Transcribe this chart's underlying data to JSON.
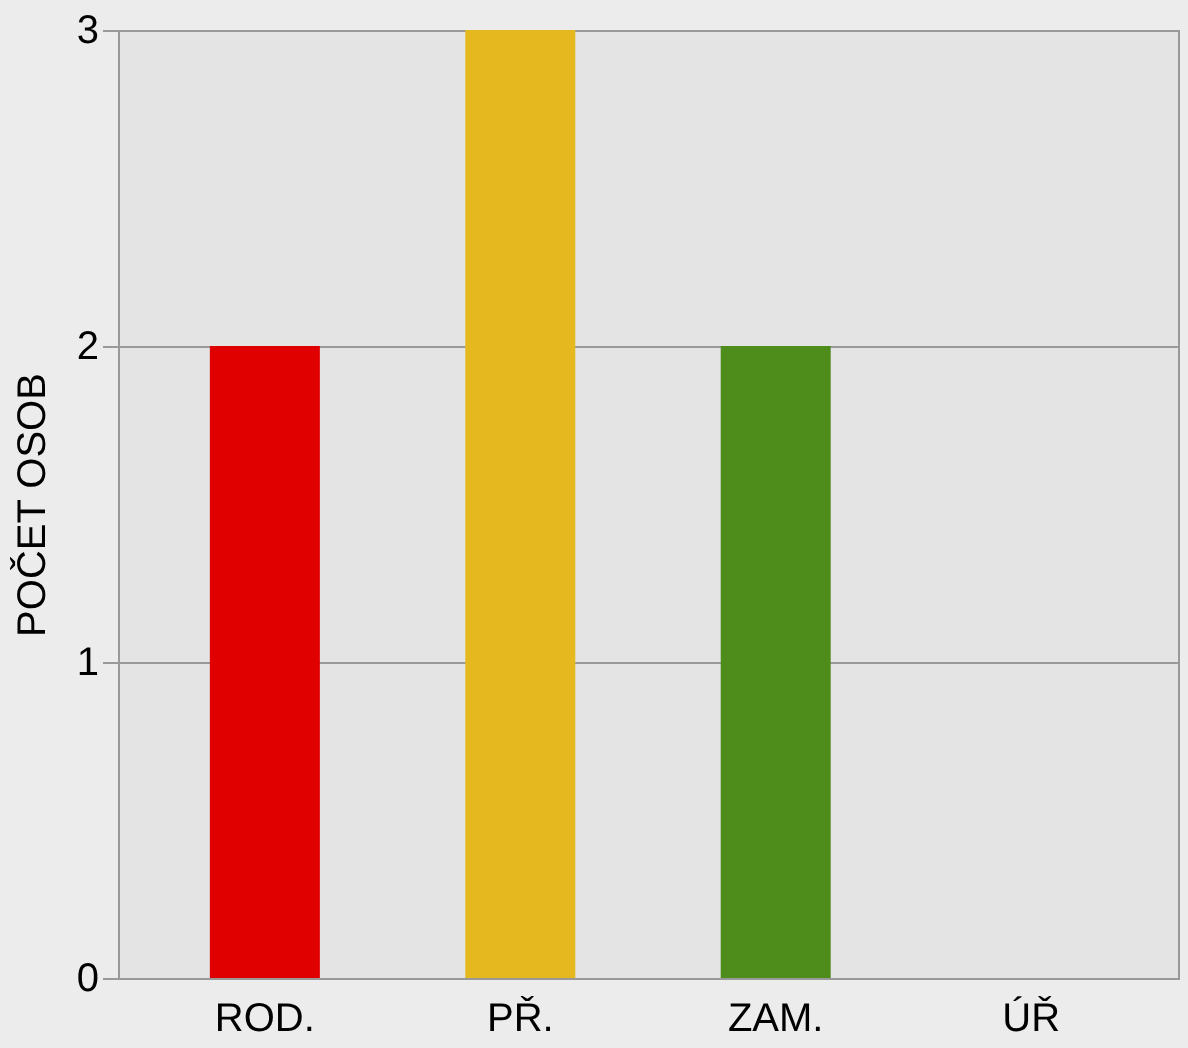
{
  "chart_data": {
    "type": "bar",
    "ylabel": "POČET OSOB",
    "categories": [
      "ROD.",
      "PŘ.",
      "ZAM.",
      "ÚŘ"
    ],
    "values": [
      2,
      3,
      2,
      0
    ],
    "colors": [
      "#e00000",
      "#e6b820",
      "#4e8c1c",
      "#a0a0a0"
    ],
    "ylim": [
      0,
      3
    ],
    "yticks": [
      0,
      1,
      2,
      3
    ],
    "grid": "y"
  }
}
